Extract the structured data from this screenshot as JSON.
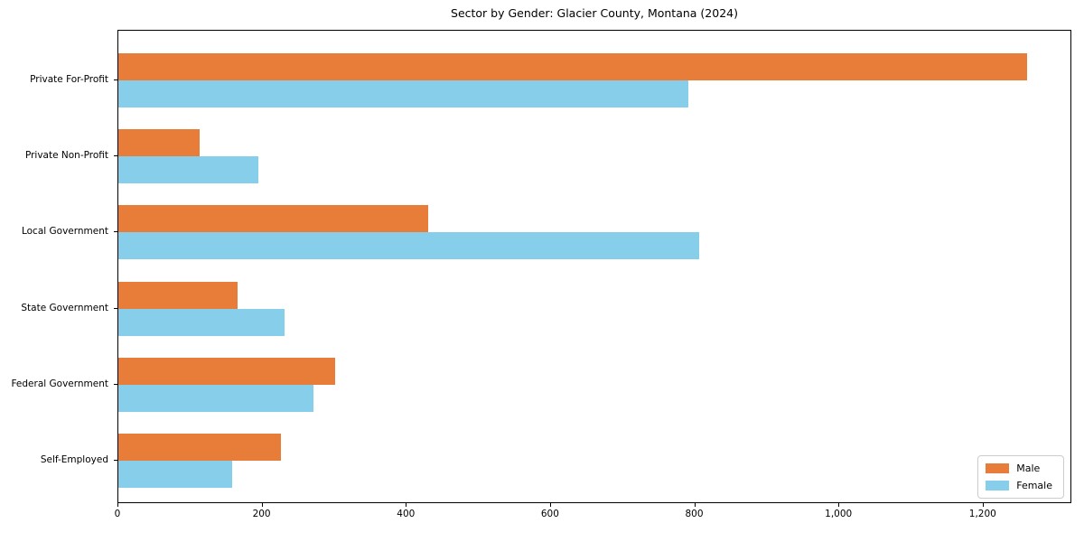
{
  "figure": {
    "background": "#ffffff",
    "frame_color": "#000000"
  },
  "chart_data": {
    "type": "bar",
    "orientation": "horizontal",
    "title": "Sector by Gender: Glacier County, Montana (2024)",
    "xlabel": "",
    "ylabel": "",
    "categories": [
      "Private For-Profit",
      "Private Non-Profit",
      "Local Government",
      "State Government",
      "Federal Government",
      "Self-Employed"
    ],
    "series": [
      {
        "name": "Male",
        "color": "#e87d3a",
        "values": [
          1260,
          113,
          430,
          165,
          300,
          225
        ]
      },
      {
        "name": "Female",
        "color": "#87ceeb",
        "values": [
          790,
          194,
          805,
          230,
          270,
          158
        ]
      }
    ],
    "xlim": [
      0,
      1323
    ],
    "xticks": {
      "values": [
        0,
        200,
        400,
        600,
        800,
        1000,
        1200
      ],
      "labels": [
        "0",
        "200",
        "400",
        "600",
        "800",
        "1,000",
        "1,200"
      ]
    },
    "grid": false,
    "legend": {
      "position": "lower right",
      "entries": [
        "Male",
        "Female"
      ]
    }
  }
}
